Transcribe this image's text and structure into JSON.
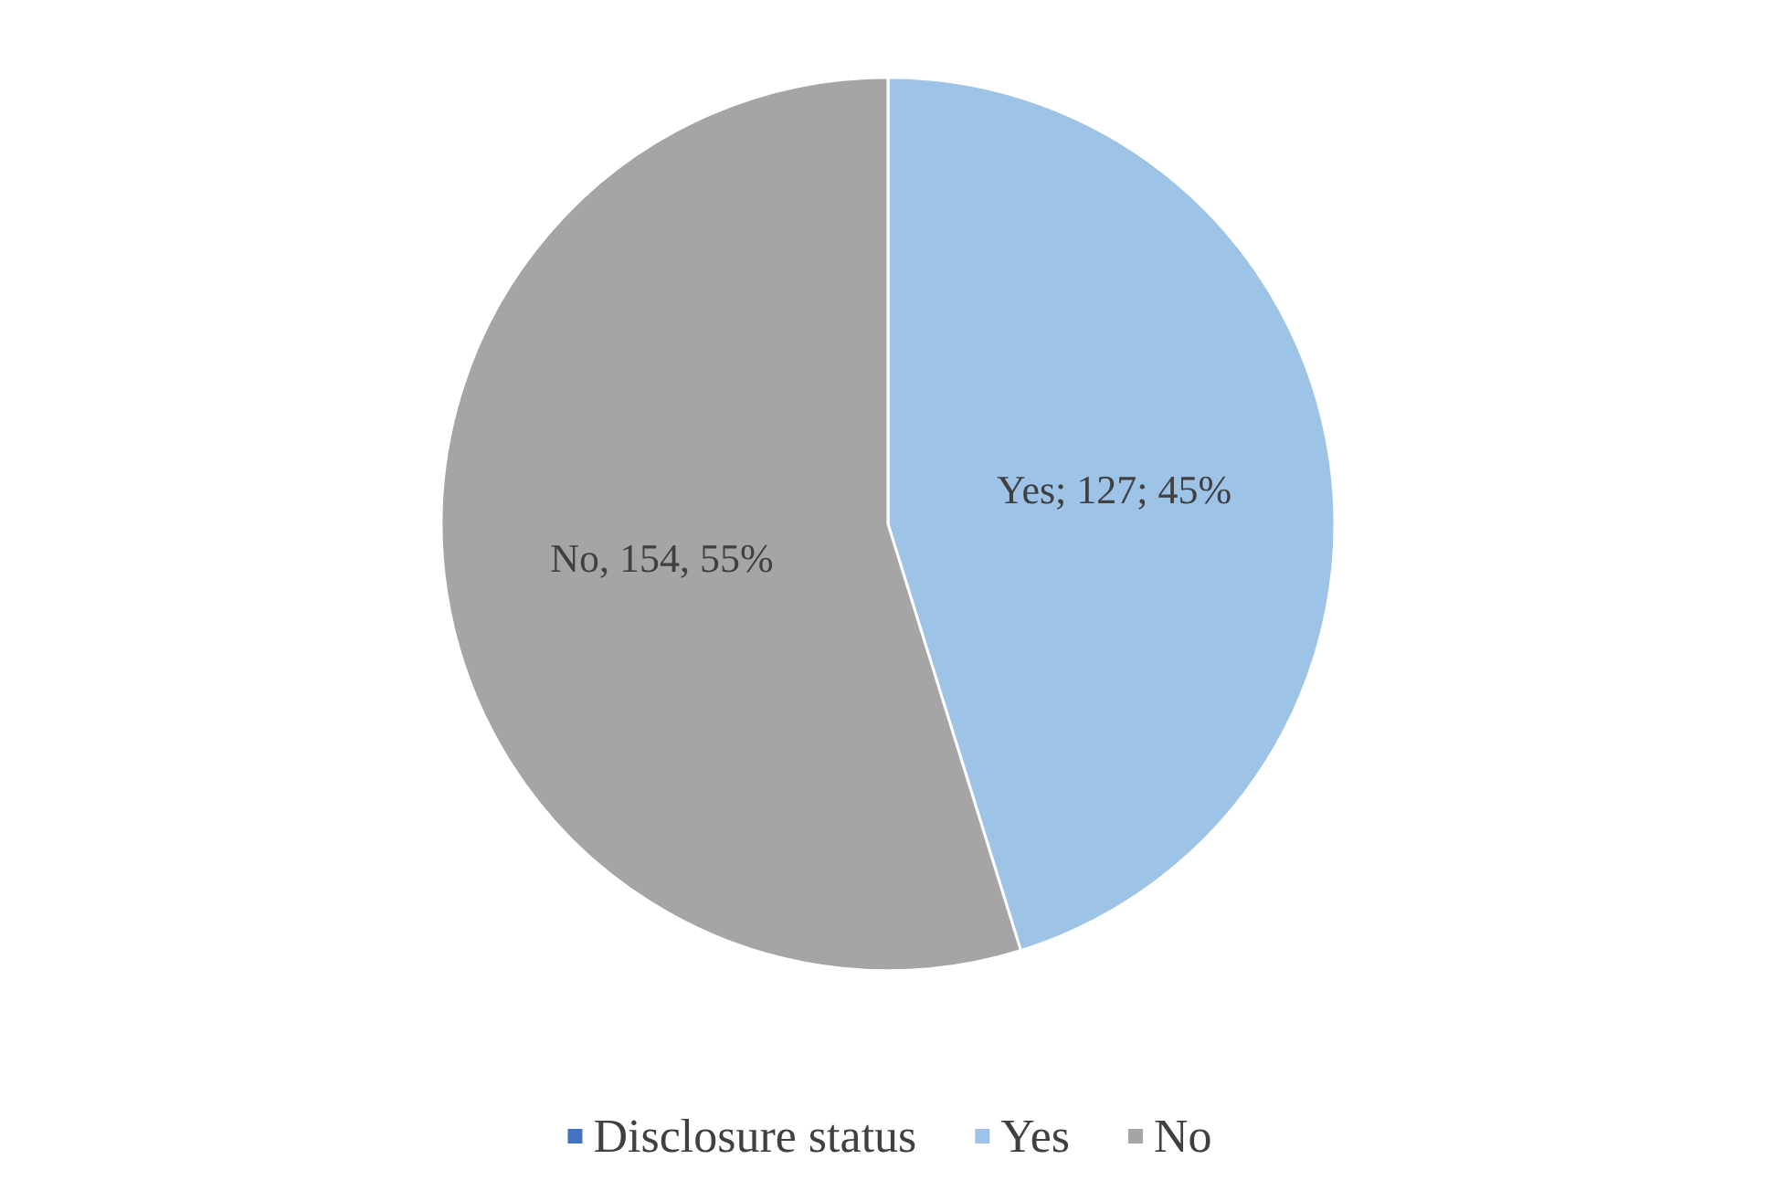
{
  "chart_data": {
    "type": "pie",
    "categories": [
      "Disclosure status",
      "Yes",
      "No"
    ],
    "values": [
      0,
      127,
      154
    ],
    "colors": [
      "#4472c4",
      "#9dc3e6",
      "#a5a5a5"
    ],
    "value_labels": [
      null,
      "Yes; 127; 45%",
      "No, 154, 55%"
    ],
    "legend": "bottom"
  }
}
